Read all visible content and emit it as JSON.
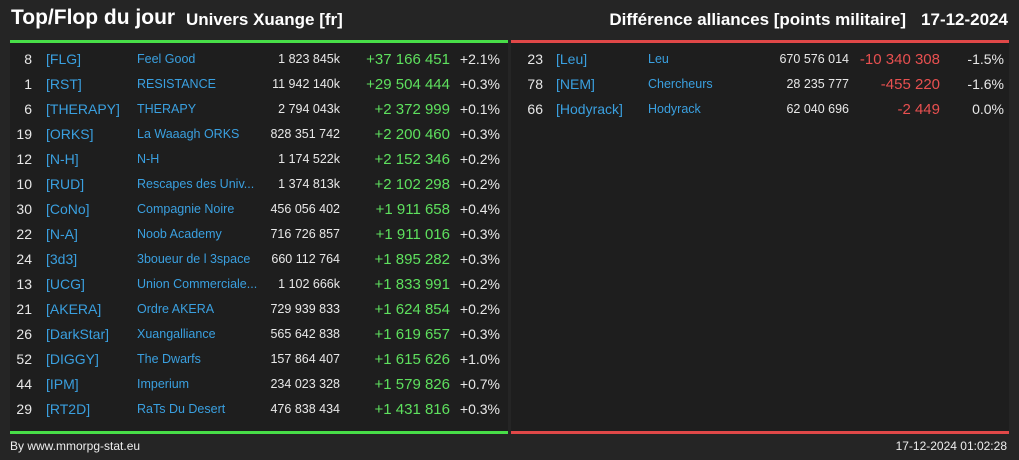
{
  "header": {
    "title": "Top/Flop du jour",
    "universe": "Univers Xuange [fr]",
    "subtitle": "Différence alliances [points militaire]",
    "date": "17-12-2024"
  },
  "colors": {
    "top_accent": "#48de48",
    "flop_accent": "#e04848",
    "tag_color": "#3aa0e0"
  },
  "top": [
    {
      "rank": "8",
      "tag": "[FLG]",
      "name": "Feel Good",
      "points": "1 823 845k",
      "diff": "+37 166 451",
      "pct": "+2.1%"
    },
    {
      "rank": "1",
      "tag": "[RST]",
      "name": "RESISTANCE",
      "points": "11 942 140k",
      "diff": "+29 504 444",
      "pct": "+0.3%"
    },
    {
      "rank": "6",
      "tag": "[THERAPY]",
      "name": "THERAPY",
      "points": "2 794 043k",
      "diff": "+2 372 999",
      "pct": "+0.1%"
    },
    {
      "rank": "19",
      "tag": "[ORKS]",
      "name": "La Waaagh ORKS",
      "points": "828 351 742",
      "diff": "+2 200 460",
      "pct": "+0.3%"
    },
    {
      "rank": "12",
      "tag": "[N-H]",
      "name": "N-H",
      "points": "1 174 522k",
      "diff": "+2 152 346",
      "pct": "+0.2%"
    },
    {
      "rank": "10",
      "tag": "[RUD]",
      "name": "Rescapes des Univ...",
      "points": "1 374 813k",
      "diff": "+2 102 298",
      "pct": "+0.2%"
    },
    {
      "rank": "30",
      "tag": "[CoNo]",
      "name": "Compagnie Noire",
      "points": "456 056 402",
      "diff": "+1 911 658",
      "pct": "+0.4%"
    },
    {
      "rank": "22",
      "tag": "[N-A]",
      "name": "Noob Academy",
      "points": "716 726 857",
      "diff": "+1 911 016",
      "pct": "+0.3%"
    },
    {
      "rank": "24",
      "tag": "[3d3]",
      "name": "3boueur de l 3space",
      "points": "660 112 764",
      "diff": "+1 895 282",
      "pct": "+0.3%"
    },
    {
      "rank": "13",
      "tag": "[UCG]",
      "name": "Union Commerciale...",
      "points": "1 102 666k",
      "diff": "+1 833 991",
      "pct": "+0.2%"
    },
    {
      "rank": "21",
      "tag": "[AKERA]",
      "name": "Ordre AKERA",
      "points": "729 939 833",
      "diff": "+1 624 854",
      "pct": "+0.2%"
    },
    {
      "rank": "26",
      "tag": "[DarkStar]",
      "name": "Xuangalliance",
      "points": "565 642 838",
      "diff": "+1 619 657",
      "pct": "+0.3%"
    },
    {
      "rank": "52",
      "tag": "[DIGGY]",
      "name": "The Dwarfs",
      "points": "157 864 407",
      "diff": "+1 615 626",
      "pct": "+1.0%"
    },
    {
      "rank": "44",
      "tag": "[IPM]",
      "name": "Imperium",
      "points": "234 023 328",
      "diff": "+1 579 826",
      "pct": "+0.7%"
    },
    {
      "rank": "29",
      "tag": "[RT2D]",
      "name": "RaTs Du Desert",
      "points": "476 838 434",
      "diff": "+1 431 816",
      "pct": "+0.3%"
    }
  ],
  "flop": [
    {
      "rank": "23",
      "tag": "[Leu]",
      "name": "Leu",
      "points": "670 576 014",
      "diff": "-10 340 308",
      "pct": "-1.5%"
    },
    {
      "rank": "78",
      "tag": "[NEM]",
      "name": "Chercheurs",
      "points": "28 235 777",
      "diff": "-455 220",
      "pct": "-1.6%"
    },
    {
      "rank": "66",
      "tag": "[Hodyrack]",
      "name": "Hodyrack",
      "points": "62 040 696",
      "diff": "-2 449",
      "pct": "0.0%"
    }
  ],
  "footer": {
    "source": "By www.mmorpg-stat.eu",
    "timestamp": "17-12-2024 01:02:28"
  }
}
